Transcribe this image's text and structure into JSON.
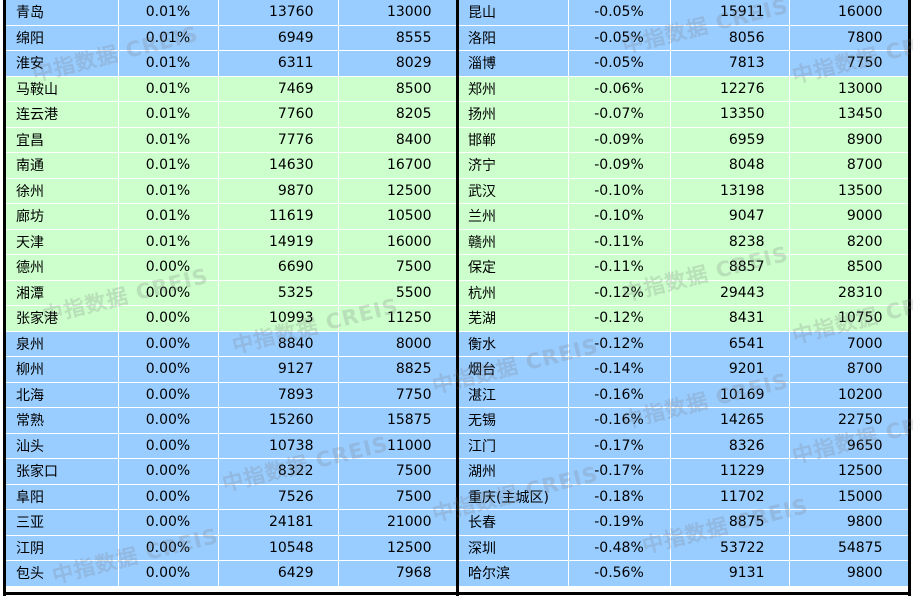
{
  "watermark": "中指数据 CREIS",
  "colors": {
    "blue_row": "#99ccff",
    "green_row": "#ccffcc",
    "border": "#000000"
  },
  "left_rows": [
    {
      "city": "青岛",
      "change": "0.01%",
      "v1": "13760",
      "v2": "13000",
      "tone": "blue"
    },
    {
      "city": "绵阳",
      "change": "0.01%",
      "v1": "6949",
      "v2": "8555",
      "tone": "blue"
    },
    {
      "city": "淮安",
      "change": "0.01%",
      "v1": "6311",
      "v2": "8029",
      "tone": "blue"
    },
    {
      "city": "马鞍山",
      "change": "0.01%",
      "v1": "7469",
      "v2": "8500",
      "tone": "green"
    },
    {
      "city": "连云港",
      "change": "0.01%",
      "v1": "7760",
      "v2": "8205",
      "tone": "green"
    },
    {
      "city": "宜昌",
      "change": "0.01%",
      "v1": "7776",
      "v2": "8400",
      "tone": "green"
    },
    {
      "city": "南通",
      "change": "0.01%",
      "v1": "14630",
      "v2": "16700",
      "tone": "green"
    },
    {
      "city": "徐州",
      "change": "0.01%",
      "v1": "9870",
      "v2": "12500",
      "tone": "green"
    },
    {
      "city": "廊坊",
      "change": "0.01%",
      "v1": "11619",
      "v2": "10500",
      "tone": "green"
    },
    {
      "city": "天津",
      "change": "0.01%",
      "v1": "14919",
      "v2": "16000",
      "tone": "green"
    },
    {
      "city": "德州",
      "change": "0.00%",
      "v1": "6690",
      "v2": "7500",
      "tone": "green"
    },
    {
      "city": "湘潭",
      "change": "0.00%",
      "v1": "5325",
      "v2": "5500",
      "tone": "green"
    },
    {
      "city": "张家港",
      "change": "0.00%",
      "v1": "10993",
      "v2": "11250",
      "tone": "green"
    },
    {
      "city": "泉州",
      "change": "0.00%",
      "v1": "8840",
      "v2": "8000",
      "tone": "blue"
    },
    {
      "city": "柳州",
      "change": "0.00%",
      "v1": "9127",
      "v2": "8825",
      "tone": "blue"
    },
    {
      "city": "北海",
      "change": "0.00%",
      "v1": "7893",
      "v2": "7750",
      "tone": "blue"
    },
    {
      "city": "常熟",
      "change": "0.00%",
      "v1": "15260",
      "v2": "15875",
      "tone": "blue"
    },
    {
      "city": "汕头",
      "change": "0.00%",
      "v1": "10738",
      "v2": "11000",
      "tone": "blue"
    },
    {
      "city": "张家口",
      "change": "0.00%",
      "v1": "8322",
      "v2": "7500",
      "tone": "blue"
    },
    {
      "city": "阜阳",
      "change": "0.00%",
      "v1": "7526",
      "v2": "7500",
      "tone": "blue"
    },
    {
      "city": "三亚",
      "change": "0.00%",
      "v1": "24181",
      "v2": "21000",
      "tone": "blue"
    },
    {
      "city": "江阴",
      "change": "0.00%",
      "v1": "10548",
      "v2": "12500",
      "tone": "blue"
    },
    {
      "city": "包头",
      "change": "0.00%",
      "v1": "6429",
      "v2": "7968",
      "tone": "blue"
    }
  ],
  "right_rows": [
    {
      "city": "昆山",
      "change": "-0.05%",
      "v1": "15911",
      "v2": "16000",
      "tone": "blue"
    },
    {
      "city": "洛阳",
      "change": "-0.05%",
      "v1": "8056",
      "v2": "7800",
      "tone": "blue"
    },
    {
      "city": "淄博",
      "change": "-0.05%",
      "v1": "7813",
      "v2": "7750",
      "tone": "blue"
    },
    {
      "city": "郑州",
      "change": "-0.06%",
      "v1": "12276",
      "v2": "13000",
      "tone": "green"
    },
    {
      "city": "扬州",
      "change": "-0.07%",
      "v1": "13350",
      "v2": "13450",
      "tone": "green"
    },
    {
      "city": "邯郸",
      "change": "-0.09%",
      "v1": "6959",
      "v2": "8900",
      "tone": "green"
    },
    {
      "city": "济宁",
      "change": "-0.09%",
      "v1": "8048",
      "v2": "8700",
      "tone": "green"
    },
    {
      "city": "武汉",
      "change": "-0.10%",
      "v1": "13198",
      "v2": "13500",
      "tone": "green"
    },
    {
      "city": "兰州",
      "change": "-0.10%",
      "v1": "9047",
      "v2": "9000",
      "tone": "green"
    },
    {
      "city": "赣州",
      "change": "-0.11%",
      "v1": "8238",
      "v2": "8200",
      "tone": "green"
    },
    {
      "city": "保定",
      "change": "-0.11%",
      "v1": "8857",
      "v2": "8500",
      "tone": "green"
    },
    {
      "city": "杭州",
      "change": "-0.12%",
      "v1": "29443",
      "v2": "28310",
      "tone": "green"
    },
    {
      "city": "芜湖",
      "change": "-0.12%",
      "v1": "8431",
      "v2": "10750",
      "tone": "green"
    },
    {
      "city": "衡水",
      "change": "-0.12%",
      "v1": "6541",
      "v2": "7000",
      "tone": "blue"
    },
    {
      "city": "烟台",
      "change": "-0.14%",
      "v1": "9201",
      "v2": "8700",
      "tone": "blue"
    },
    {
      "city": "湛江",
      "change": "-0.16%",
      "v1": "10169",
      "v2": "10200",
      "tone": "blue"
    },
    {
      "city": "无锡",
      "change": "-0.16%",
      "v1": "14265",
      "v2": "22750",
      "tone": "blue"
    },
    {
      "city": "江门",
      "change": "-0.17%",
      "v1": "8326",
      "v2": "9650",
      "tone": "blue"
    },
    {
      "city": "湖州",
      "change": "-0.17%",
      "v1": "11229",
      "v2": "12500",
      "tone": "blue"
    },
    {
      "city": "重庆(主城区)",
      "change": "-0.18%",
      "v1": "11702",
      "v2": "15000",
      "tone": "blue"
    },
    {
      "city": "长春",
      "change": "-0.19%",
      "v1": "8875",
      "v2": "9800",
      "tone": "blue"
    },
    {
      "city": "深圳",
      "change": "-0.48%",
      "v1": "53722",
      "v2": "54875",
      "tone": "blue"
    },
    {
      "city": "哈尔滨",
      "change": "-0.56%",
      "v1": "9131",
      "v2": "9800",
      "tone": "blue"
    }
  ]
}
